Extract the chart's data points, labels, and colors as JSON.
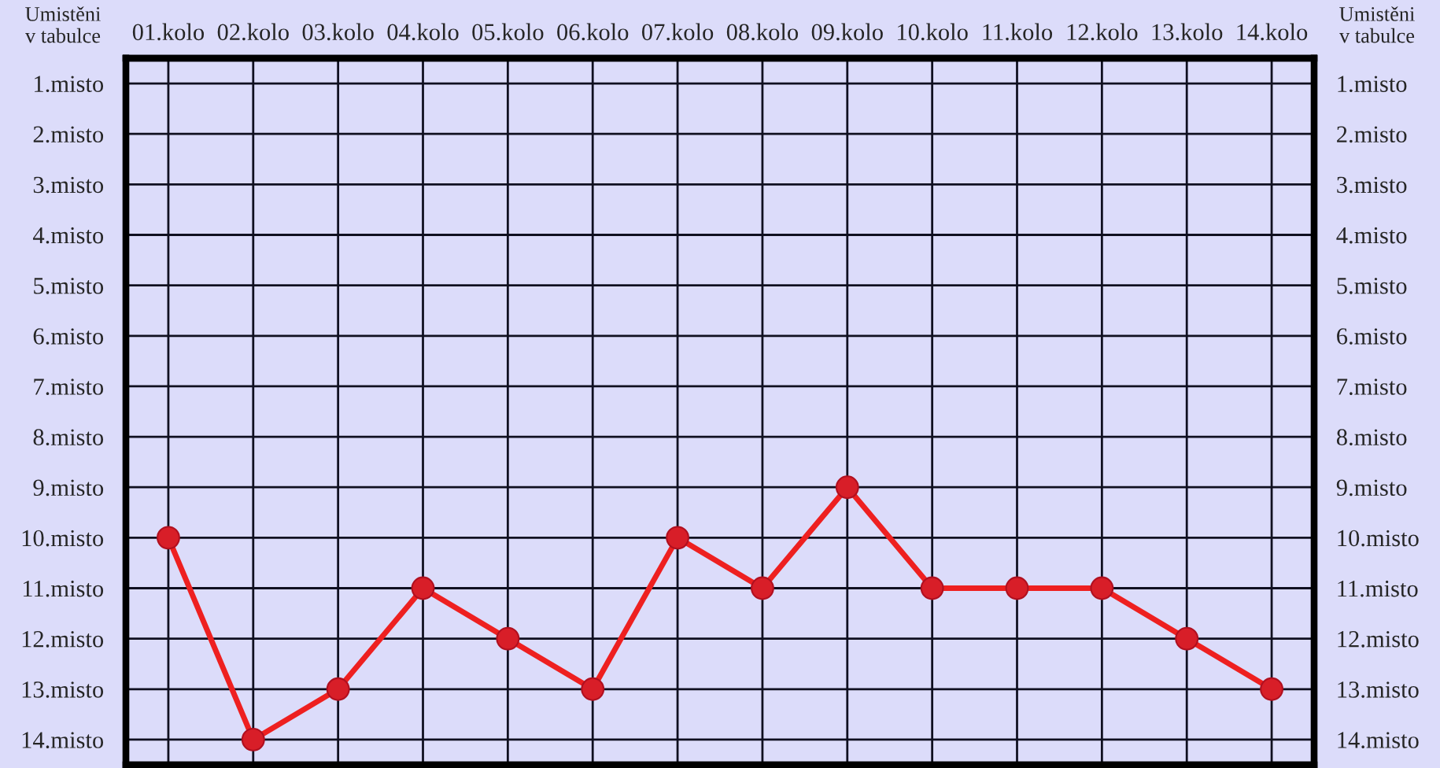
{
  "chart_data": {
    "type": "line",
    "ylabel": "Umistěni\nv tabulce",
    "y2label": "Umistěni\nv tabulce",
    "categories": [
      "01.kolo",
      "02.kolo",
      "03.kolo",
      "04.kolo",
      "05.kolo",
      "06.kolo",
      "07.kolo",
      "08.kolo",
      "09.kolo",
      "10.kolo",
      "11.kolo",
      "12.kolo",
      "13.kolo",
      "14.kolo"
    ],
    "series": [
      {
        "color": "#ee2020",
        "values": [
          10,
          14,
          13,
          11,
          12,
          13,
          10,
          11,
          9,
          11,
          11,
          11,
          12,
          13
        ]
      }
    ],
    "ylim": [
      14.5,
      0.5
    ],
    "yticks": [
      {
        "value": 1,
        "label": "1.misto"
      },
      {
        "value": 2,
        "label": "2.misto"
      },
      {
        "value": 3,
        "label": "3.misto"
      },
      {
        "value": 4,
        "label": "4.misto"
      },
      {
        "value": 5,
        "label": "5.misto"
      },
      {
        "value": 6,
        "label": "6.misto"
      },
      {
        "value": 7,
        "label": "7.misto"
      },
      {
        "value": 8,
        "label": "8.misto"
      },
      {
        "value": 9,
        "label": "9.misto"
      },
      {
        "value": 10,
        "label": "10.misto"
      },
      {
        "value": 11,
        "label": "11.misto"
      },
      {
        "value": 12,
        "label": "12.misto"
      },
      {
        "value": 13,
        "label": "13.misto"
      },
      {
        "value": 14,
        "label": "14.misto"
      }
    ],
    "y2lim": [
      14.5,
      0.5
    ],
    "y2ticks": [
      {
        "value": 1,
        "label": "1.misto"
      },
      {
        "value": 2,
        "label": "2.misto"
      },
      {
        "value": 3,
        "label": "3.misto"
      },
      {
        "value": 4,
        "label": "4.misto"
      },
      {
        "value": 5,
        "label": "5.misto"
      },
      {
        "value": 6,
        "label": "6.misto"
      },
      {
        "value": 7,
        "label": "7.misto"
      },
      {
        "value": 8,
        "label": "8.misto"
      },
      {
        "value": 9,
        "label": "9.misto"
      },
      {
        "value": 10,
        "label": "10.misto"
      },
      {
        "value": 11,
        "label": "11.misto"
      },
      {
        "value": 12,
        "label": "12.misto"
      },
      {
        "value": 13,
        "label": "13.misto"
      },
      {
        "value": 14,
        "label": "14.misto"
      }
    ],
    "grid": true,
    "marker": "circle",
    "line_style": "solid",
    "legend": false
  }
}
